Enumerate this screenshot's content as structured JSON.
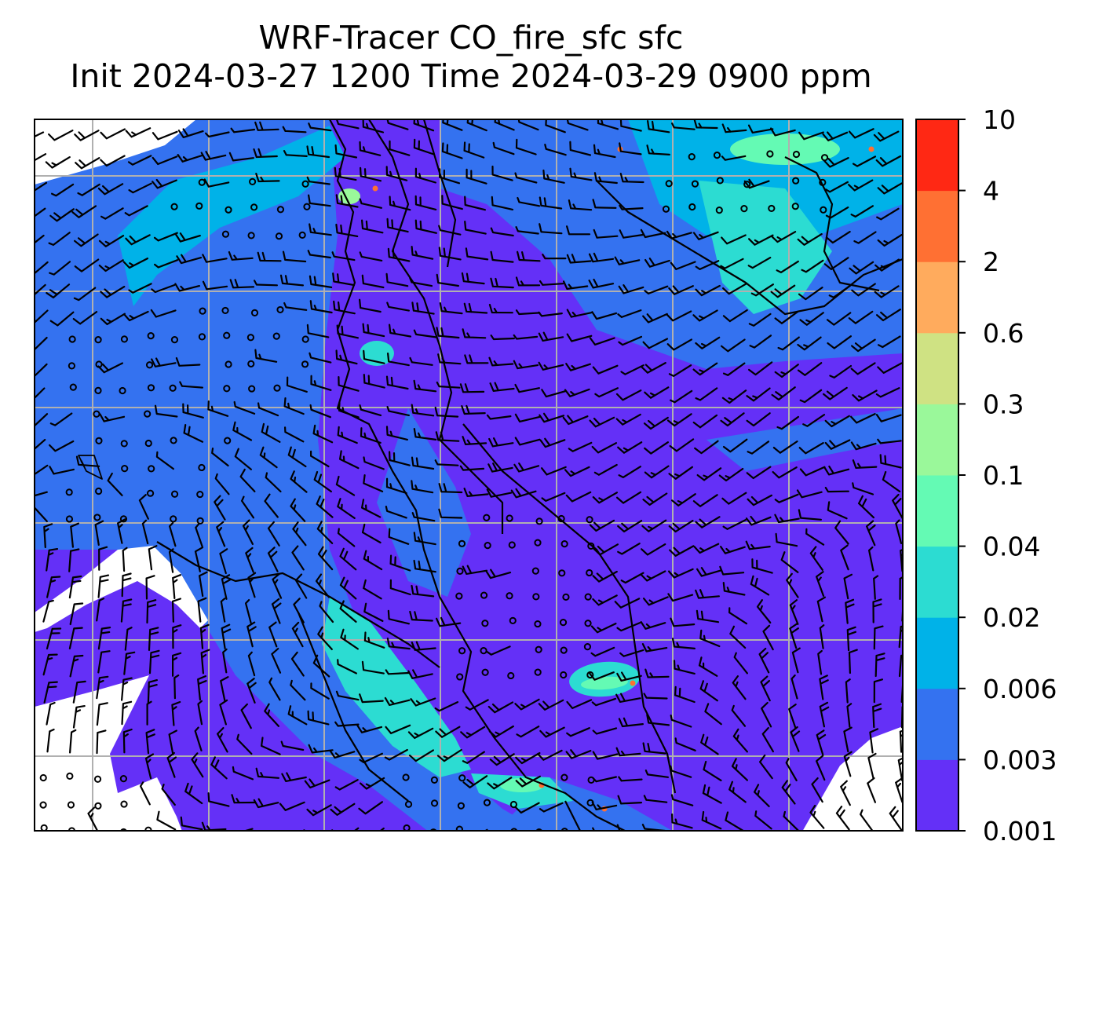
{
  "title": {
    "line1": "WRF-Tracer CO_fire_sfc sfc",
    "line2": "Init 2024-03-27 1200 Time 2024-03-29 0900 ppm"
  },
  "colorbar": {
    "levels": [
      "0.001",
      "0.003",
      "0.006",
      "0.02",
      "0.04",
      "0.1",
      "0.3",
      "0.6",
      "2",
      "4",
      "10"
    ],
    "colors": [
      "#6430f7",
      "#3472f0",
      "#00b2e8",
      "#2cdcd2",
      "#64fab4",
      "#9af89a",
      "#cfe283",
      "#ffab5d",
      "#ff7033",
      "#ff2814"
    ]
  },
  "map": {
    "field": "CO_fire_sfc",
    "background_color": "#ffffff",
    "grid_color": "#b0b0b0",
    "coast_color": "#000000",
    "barb_color": "#000000"
  }
}
